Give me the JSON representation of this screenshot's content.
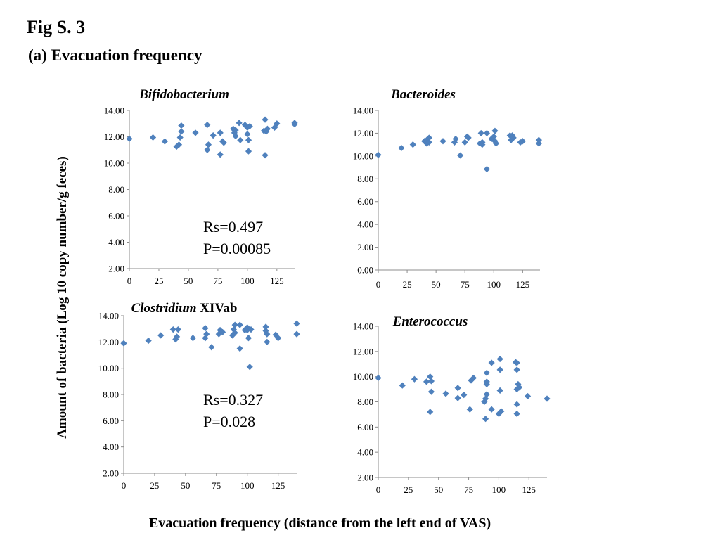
{
  "figure": {
    "title": "Fig S. 3",
    "subtitle": "(a) Evacuation frequency",
    "ylabel": "Amount of bacteria (Log 10 copy number/g feces)",
    "xlabel": "Evacuation frequency (distance from the left end of VAS)",
    "marker_color": "#4f81bd",
    "axis_color": "#8c8c8c"
  },
  "chart_data": [
    {
      "type": "scatter",
      "title_italic": "Bifidobacterium",
      "title_plain": "",
      "xlim": [
        0,
        140
      ],
      "ylim": [
        2,
        14
      ],
      "xticks": [
        0,
        25,
        50,
        75,
        100,
        125
      ],
      "yticks": [
        "2.00",
        "4.00",
        "6.00",
        "8.00",
        "10.00",
        "12.00",
        "14.00"
      ],
      "annotations": [
        "Rs=0.497",
        "P=0.00085"
      ],
      "points": [
        [
          0,
          11.85
        ],
        [
          20,
          11.95
        ],
        [
          30,
          11.65
        ],
        [
          40,
          11.25
        ],
        [
          42,
          11.4
        ],
        [
          43,
          11.95
        ],
        [
          44,
          12.4
        ],
        [
          44,
          12.85
        ],
        [
          56,
          12.3
        ],
        [
          66,
          12.9
        ],
        [
          66,
          11.0
        ],
        [
          67,
          11.4
        ],
        [
          71,
          12.1
        ],
        [
          77,
          12.3
        ],
        [
          77,
          10.65
        ],
        [
          79,
          11.65
        ],
        [
          80,
          11.55
        ],
        [
          88,
          12.6
        ],
        [
          89,
          12.3
        ],
        [
          90,
          12.05
        ],
        [
          90,
          12.5
        ],
        [
          93,
          13.05
        ],
        [
          94,
          11.75
        ],
        [
          98,
          12.9
        ],
        [
          100,
          12.2
        ],
        [
          100,
          12.7
        ],
        [
          101,
          10.9
        ],
        [
          101,
          11.75
        ],
        [
          102,
          12.8
        ],
        [
          114,
          12.45
        ],
        [
          115,
          13.3
        ],
        [
          115,
          10.6
        ],
        [
          116,
          12.4
        ],
        [
          117,
          12.6
        ],
        [
          123,
          12.7
        ],
        [
          125,
          13.0
        ],
        [
          140,
          13.05
        ],
        [
          140,
          12.95
        ]
      ]
    },
    {
      "type": "scatter",
      "title_italic": "Bacteroides",
      "title_plain": "",
      "xlim": [
        0,
        140
      ],
      "ylim": [
        0,
        14
      ],
      "xticks": [
        0,
        25,
        50,
        75,
        100,
        125
      ],
      "yticks": [
        "0.00",
        "2.00",
        "4.00",
        "6.00",
        "8.00",
        "10.00",
        "12.00",
        "14.00"
      ],
      "annotations": [],
      "points": [
        [
          0,
          10.1
        ],
        [
          20,
          10.7
        ],
        [
          30,
          11.0
        ],
        [
          40,
          11.3
        ],
        [
          42,
          11.1
        ],
        [
          43,
          11.5
        ],
        [
          44,
          11.2
        ],
        [
          44,
          11.6
        ],
        [
          56,
          11.3
        ],
        [
          66,
          11.2
        ],
        [
          67,
          11.5
        ],
        [
          71,
          10.05
        ],
        [
          75,
          11.2
        ],
        [
          77,
          11.7
        ],
        [
          78,
          11.6
        ],
        [
          88,
          11.1
        ],
        [
          89,
          12.0
        ],
        [
          90,
          11.0
        ],
        [
          90,
          11.2
        ],
        [
          94,
          12.0
        ],
        [
          94,
          8.85
        ],
        [
          98,
          11.5
        ],
        [
          100,
          11.7
        ],
        [
          101,
          12.2
        ],
        [
          101,
          11.3
        ],
        [
          102,
          11.1
        ],
        [
          114,
          11.8
        ],
        [
          115,
          11.4
        ],
        [
          116,
          11.8
        ],
        [
          117,
          11.6
        ],
        [
          123,
          11.2
        ],
        [
          125,
          11.3
        ],
        [
          139,
          11.4
        ],
        [
          139,
          11.1
        ]
      ]
    },
    {
      "type": "scatter",
      "title_italic": "Clostridium",
      "title_plain": " XIVab",
      "xlim": [
        0,
        140
      ],
      "ylim": [
        2,
        14
      ],
      "xticks": [
        0,
        25,
        50,
        75,
        100,
        125
      ],
      "yticks": [
        "2.00",
        "4.00",
        "6.00",
        "8.00",
        "10.00",
        "12.00",
        "14.00"
      ],
      "annotations": [
        "Rs=0.327",
        "P=0.028"
      ],
      "points": [
        [
          0,
          11.9
        ],
        [
          20,
          12.1
        ],
        [
          30,
          12.5
        ],
        [
          40,
          12.95
        ],
        [
          42,
          12.2
        ],
        [
          43,
          12.4
        ],
        [
          44,
          12.95
        ],
        [
          56,
          12.3
        ],
        [
          66,
          13.05
        ],
        [
          66,
          12.3
        ],
        [
          67,
          12.6
        ],
        [
          71,
          11.6
        ],
        [
          77,
          12.6
        ],
        [
          78,
          12.9
        ],
        [
          79,
          12.8
        ],
        [
          80,
          12.75
        ],
        [
          88,
          12.5
        ],
        [
          89,
          12.95
        ],
        [
          90,
          13.3
        ],
        [
          90,
          12.7
        ],
        [
          94,
          13.3
        ],
        [
          94,
          11.5
        ],
        [
          98,
          12.9
        ],
        [
          100,
          13.1
        ],
        [
          100,
          12.9
        ],
        [
          101,
          12.3
        ],
        [
          102,
          10.1
        ],
        [
          103,
          12.95
        ],
        [
          115,
          12.85
        ],
        [
          115,
          13.15
        ],
        [
          116,
          12.0
        ],
        [
          116,
          12.6
        ],
        [
          123,
          12.55
        ],
        [
          125,
          12.3
        ],
        [
          140,
          13.4
        ],
        [
          140,
          12.6
        ]
      ]
    },
    {
      "type": "scatter",
      "title_italic": "Enterococcus",
      "title_plain": "",
      "xlim": [
        0,
        140
      ],
      "ylim": [
        2,
        14
      ],
      "xticks": [
        0,
        25,
        50,
        75,
        100,
        125
      ],
      "yticks": [
        "2.00",
        "4.00",
        "6.00",
        "8.00",
        "10.00",
        "12.00",
        "14.00"
      ],
      "annotations": [],
      "points": [
        [
          0,
          9.9
        ],
        [
          20,
          9.3
        ],
        [
          30,
          9.8
        ],
        [
          40,
          9.6
        ],
        [
          43,
          10.0
        ],
        [
          43,
          7.2
        ],
        [
          44,
          9.65
        ],
        [
          44,
          8.8
        ],
        [
          56,
          8.65
        ],
        [
          66,
          9.1
        ],
        [
          66,
          8.3
        ],
        [
          71,
          8.55
        ],
        [
          76,
          7.4
        ],
        [
          77,
          9.7
        ],
        [
          79,
          9.9
        ],
        [
          88,
          8.0
        ],
        [
          89,
          8.25
        ],
        [
          89,
          6.65
        ],
        [
          90,
          9.6
        ],
        [
          90,
          10.3
        ],
        [
          90,
          9.4
        ],
        [
          90,
          8.6
        ],
        [
          94,
          11.1
        ],
        [
          94,
          7.4
        ],
        [
          100,
          7.05
        ],
        [
          101,
          11.4
        ],
        [
          101,
          10.55
        ],
        [
          101,
          8.9
        ],
        [
          102,
          7.25
        ],
        [
          114,
          11.15
        ],
        [
          115,
          11.1
        ],
        [
          115,
          10.55
        ],
        [
          115,
          9.0
        ],
        [
          115,
          7.8
        ],
        [
          115,
          7.05
        ],
        [
          116,
          9.4
        ],
        [
          117,
          9.15
        ],
        [
          124,
          8.45
        ],
        [
          140,
          8.25
        ]
      ]
    }
  ]
}
